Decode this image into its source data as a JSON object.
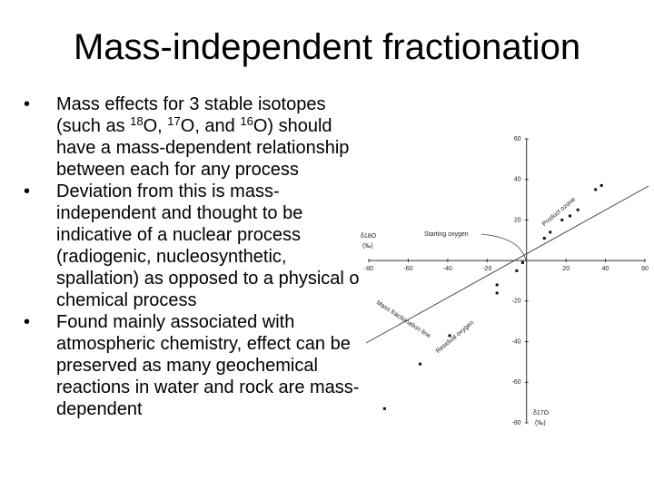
{
  "title": "Mass-independent fractionation",
  "bullets": [
    {
      "lines": [
        "Mass effects for 3 stable isotopes",
        [
          "(such as ",
          "18",
          "O, ",
          "17",
          "O, and ",
          "16",
          "O) should"
        ],
        "have a mass-dependent relationship",
        "between each for any process"
      ]
    },
    {
      "lines": [
        "Deviation from this is mass-",
        "independent and thought to be",
        "indicative of a nuclear process",
        "(radiogenic, nucleosynthetic,",
        "spallation) as opposed to a physical or",
        "chemical process"
      ]
    },
    {
      "lines": [
        "Found mainly associated with",
        "atmospheric chemistry, effect can be",
        "preserved as many geochemical",
        "reactions in water and rock are mass-",
        "dependent"
      ]
    }
  ],
  "figure": {
    "x_label": [
      "δ18O",
      "(‰)"
    ],
    "y_label": [
      "δ17O",
      "(‰)"
    ],
    "annotations": [
      "Starting oxygen",
      "Product ozone",
      "Mass fractionation line",
      "Residual oxygen"
    ],
    "xlim": [
      -80,
      60
    ],
    "ylim": [
      -80,
      60
    ],
    "xticks": [
      -80,
      -60,
      -40,
      -20,
      20,
      40,
      60
    ],
    "yticks": [
      60,
      40,
      20,
      -20,
      -40,
      -60,
      -80
    ],
    "x": [
      35,
      38,
      26,
      22,
      18,
      12,
      9,
      -2,
      -5,
      -15,
      -15,
      -39,
      -54,
      -72
    ],
    "y": [
      35,
      37,
      25,
      22,
      20,
      14,
      11,
      -1,
      -5,
      -12,
      -16,
      -37,
      -51,
      -73
    ]
  }
}
